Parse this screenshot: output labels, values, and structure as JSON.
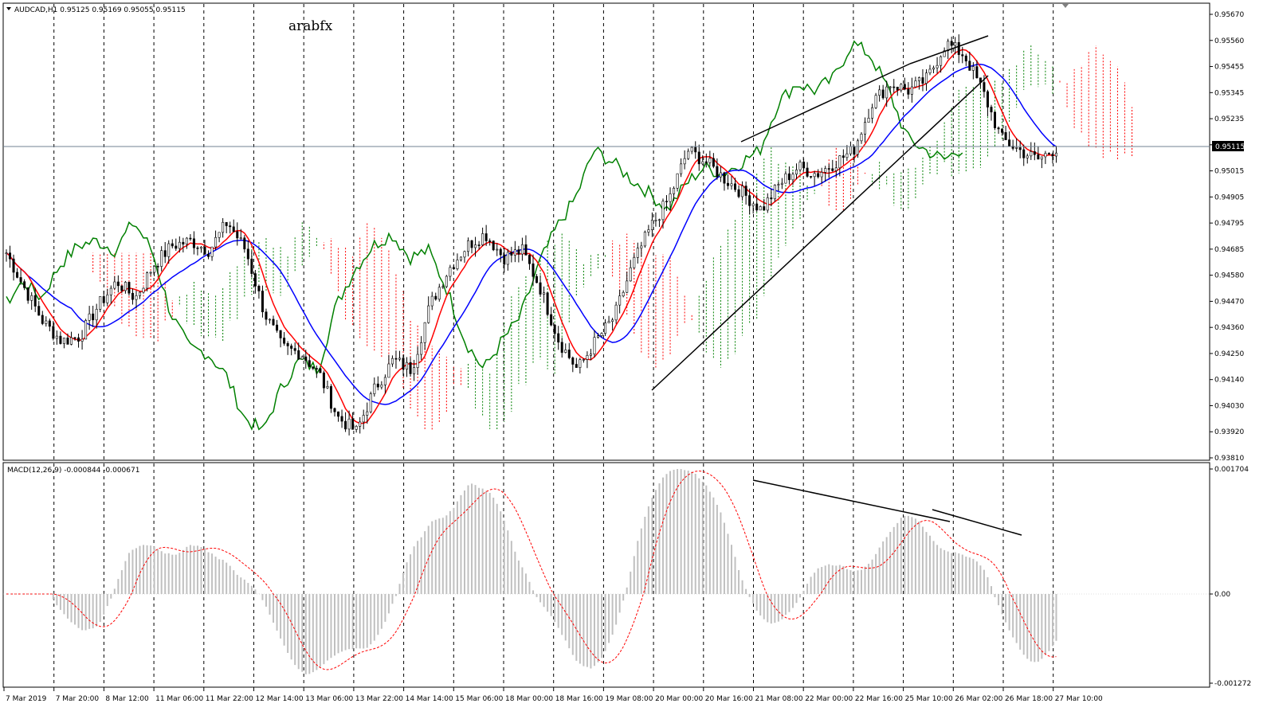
{
  "chart_header": {
    "symbol_info": "AUDCAD,H1  0.95125 0.95169 0.95055 0.95115",
    "watermark": "arabfx",
    "menu_arrow": "triangle-down-icon"
  },
  "macd_header": {
    "label": "MACD(12,26,9) -0.000844 -0.000671"
  },
  "price_axis": {
    "ticks": [
      "0.95670",
      "0.95560",
      "0.95455",
      "0.95345",
      "0.95235",
      "0.95125",
      "0.95015",
      "0.94905",
      "0.94795",
      "0.94685",
      "0.94580",
      "0.94470",
      "0.94360",
      "0.94250",
      "0.94140",
      "0.94030",
      "0.93920",
      "0.93810"
    ],
    "current_price": "0.95115"
  },
  "macd_axis": {
    "ticks": [
      "0.001704",
      "0.00",
      "-0.001272"
    ]
  },
  "time_axis": {
    "labels": [
      "7 Mar 2019",
      "7 Mar 20:00",
      "8 Mar 12:00",
      "11 Mar 06:00",
      "11 Mar 22:00",
      "12 Mar 14:00",
      "13 Mar 06:00",
      "13 Mar 22:00",
      "14 Mar 14:00",
      "15 Mar 06:00",
      "18 Mar 00:00",
      "18 Mar 16:00",
      "19 Mar 08:00",
      "20 Mar 00:00",
      "20 Mar 16:00",
      "21 Mar 08:00",
      "22 Mar 00:00",
      "22 Mar 16:00",
      "25 Mar 10:00",
      "26 Mar 02:00",
      "26 Mar 18:00",
      "27 Mar 10:00"
    ]
  },
  "colors": {
    "tenkan": "#ff0000",
    "kijun": "#0000ff",
    "chikou": "#008000",
    "cloud_bull": "#008000",
    "cloud_bear": "#ff0000",
    "candle": "#000000",
    "macd_hist": "#c0c0c0",
    "macd_signal": "#ff0000",
    "grid": "#000000"
  },
  "chart_data": [
    {
      "type": "line",
      "title": "AUDCAD,H1",
      "kind": "candlestick with Ichimoku Kinko Hyo",
      "ylim": [
        0.9381,
        0.9567
      ],
      "x_label_times": [
        "7 Mar 2019",
        "7 Mar 20:00",
        "8 Mar 12:00",
        "11 Mar 06:00",
        "11 Mar 22:00",
        "12 Mar 14:00",
        "13 Mar 06:00",
        "13 Mar 22:00",
        "14 Mar 14:00",
        "15 Mar 06:00",
        "18 Mar 00:00",
        "18 Mar 16:00",
        "19 Mar 08:00",
        "20 Mar 00:00",
        "20 Mar 16:00",
        "21 Mar 08:00",
        "22 Mar 00:00",
        "22 Mar 16:00",
        "25 Mar 10:00",
        "26 Mar 02:00",
        "26 Mar 18:00",
        "27 Mar 10:00"
      ],
      "series": [
        {
          "name": "close",
          "values": [
            0.9467,
            0.9452,
            0.9438,
            0.943,
            0.9432,
            0.9445,
            0.9455,
            0.9448,
            0.9462,
            0.947,
            0.9472,
            0.9468,
            0.948,
            0.9468,
            0.9442,
            0.9427,
            0.9425,
            0.9416,
            0.9398,
            0.9392,
            0.941,
            0.9422,
            0.9418,
            0.9445,
            0.946,
            0.947,
            0.9475,
            0.9465,
            0.9468,
            0.9452,
            0.943,
            0.9418,
            0.943,
            0.944,
            0.9462,
            0.9478,
            0.949,
            0.951,
            0.9505,
            0.9498,
            0.9492,
            0.9485,
            0.9496,
            0.9503,
            0.95,
            0.9505,
            0.951,
            0.953,
            0.9538,
            0.9535,
            0.954,
            0.9555,
            0.955,
            0.9535,
            0.9515,
            0.951,
            0.9506,
            0.9511
          ]
        }
      ]
    },
    {
      "type": "bar",
      "title": "MACD(12,26,9)",
      "ylim": [
        -0.001272,
        0.001704
      ],
      "series": [
        {
          "name": "MACD(12,26,9)",
          "last": -0.000844
        },
        {
          "name": "signal",
          "last": -0.000671
        }
      ]
    }
  ]
}
